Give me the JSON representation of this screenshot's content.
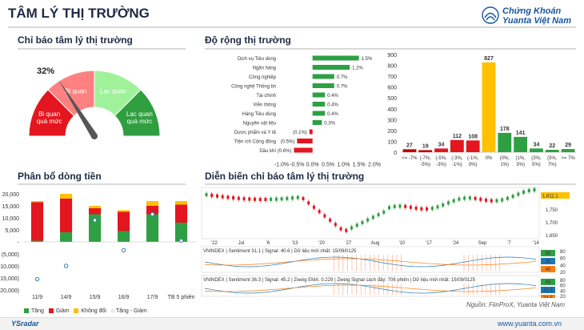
{
  "header": {
    "title": "TÂM LÝ THỊ TRƯỜNG",
    "brand_line1": "Chứng Khoán",
    "brand_line2": "Yuanta Việt Nam"
  },
  "sentiment": {
    "title": "Chỉ báo tâm lý thị trường",
    "value_label": "32%",
    "value": 32,
    "zones": [
      "Bi quan quá mức",
      "Bi quan",
      "Lạc quan",
      "Lạc quan quá mức"
    ],
    "zone_colors": [
      "#e3161f",
      "#ff8080",
      "#9ff29a",
      "#2f9e3f"
    ]
  },
  "breadth_section": {
    "title": "Độ rộng thị trường"
  },
  "sector_chart": {
    "chart_data": {
      "type": "bar",
      "orientation": "horizontal",
      "categories": [
        "Dịch vụ Tiêu dùng",
        "Ngân hàng",
        "Công nghiệp",
        "Công nghệ Thông tin",
        "Tài chính",
        "Viễn thông",
        "Hàng Tiêu dùng",
        "Nguyên vật liệu",
        "Dược phẩm và Y tế",
        "Tiện ích Cộng đồng",
        "Dầu khí"
      ],
      "values": [
        1.5,
        1.2,
        0.7,
        0.7,
        0.4,
        0.4,
        0.4,
        0.3,
        -0.1,
        -0.5,
        -0.6
      ],
      "value_labels": [
        "1.5%",
        "1.2%",
        "0.7%",
        "0.7%",
        "0.4%",
        "0.4%",
        "0.4%",
        "0.3%",
        "(0.1%)",
        "(0.5%)",
        "(0.6%)"
      ],
      "x_ticks": [
        "-1.0%",
        "-0.5%",
        "0.0%",
        "0.5%",
        "1.0%",
        "1.5%",
        "2.0%"
      ],
      "xlim": [
        -1.0,
        2.0
      ],
      "positive_color": "#2ea043",
      "negative_color": "#e3161f"
    }
  },
  "distribution_chart": {
    "chart_data": {
      "type": "bar",
      "categories": [
        "<= -7%",
        "(-7%, -5%)",
        "(-5%, -3%)",
        "(-3%, -1%)",
        "(-1%, 0%)",
        "0%",
        "(0%, 1%)",
        "(1%, 3%)",
        "(3%, 5%)",
        "(5%, 7%)",
        ">= 7%"
      ],
      "category_lines": [
        [
          "<= -7%"
        ],
        [
          "(-7%,",
          "-5%)"
        ],
        [
          "(-5%,",
          "-3%)"
        ],
        [
          "(-3%,",
          "-1%)"
        ],
        [
          "(-1%,",
          "0%)"
        ],
        [
          "0%"
        ],
        [
          "(0%,",
          "1%)"
        ],
        [
          "(1%,",
          "3%)"
        ],
        [
          "(3%,",
          "5%)"
        ],
        [
          "(5%,",
          "7%)"
        ],
        [
          ">= 7%"
        ]
      ],
      "values": [
        27,
        19,
        34,
        112,
        108,
        827,
        178,
        141,
        34,
        22,
        29
      ],
      "colors": [
        "#c00000",
        "#c00000",
        "#e3161f",
        "#e3161f",
        "#e3161f",
        "#ffc000",
        "#2ea043",
        "#2ea043",
        "#2ea043",
        "#2ea043",
        "#2ea043"
      ],
      "value_colors": [
        "#c00000",
        "#c00000",
        "#e3161f",
        "#e3161f",
        "#e3161f",
        "#ffc000",
        "#2ea043",
        "#2ea043",
        "#2ea043",
        "#2ea043",
        "#2ea043"
      ],
      "y_ticks": [
        0,
        100,
        200,
        300,
        400,
        500,
        600,
        700,
        800,
        900
      ],
      "ylim": [
        0,
        900
      ]
    }
  },
  "flow_chart": {
    "title": "Phân bổ dòng tiền",
    "chart_data": {
      "type": "bar",
      "stacked": true,
      "categories": [
        "11/9",
        "14/9",
        "15/9",
        "16/9",
        "17/9",
        "TB 5 phiên"
      ],
      "series": [
        {
          "name": "Tăng",
          "color": "#2ea043",
          "values": [
            500,
            4000,
            11500,
            4500,
            11500,
            8000
          ]
        },
        {
          "name": "Giảm",
          "color": "#e3161f",
          "values": [
            16000,
            14000,
            2500,
            8000,
            3500,
            7500
          ]
        },
        {
          "name": "Không đổi",
          "color": "#ffc000",
          "values": [
            500,
            2000,
            1000,
            700,
            2000,
            1500
          ]
        }
      ],
      "line_series": {
        "name": "Tăng - Giảm",
        "color": "#2e75b6",
        "values": [
          -15500,
          -10000,
          9000,
          -3500,
          11500,
          500
        ]
      },
      "y_ticks": [
        "20,000",
        "15,000",
        "10,000",
        "5,000",
        "-",
        "(5,000)",
        "(10,000)",
        "(15,000)",
        "(20,000)"
      ],
      "ylim": [
        -20000,
        20000
      ]
    }
  },
  "evolution": {
    "title": "Diễn biến chỉ báo tâm lý thị trường",
    "chart_data": {
      "type": "line",
      "x_labels": [
        "'22",
        "Jul",
        "'6",
        "'13",
        "'20",
        "'27",
        "Aug",
        "'10",
        "'17",
        "'24",
        "Sep",
        "'7",
        "'14"
      ],
      "price_ticks": [
        "1,750",
        "1,700",
        "1,650"
      ],
      "price_last": "1,811.1",
      "panel1_text": "VNINDEX | Sentiment 31.1 | Signal: 40.6 | Dữ liệu mới nhất: 15/09/0125",
      "panel1_ticks": [
        "80",
        "60",
        "40",
        "20"
      ],
      "panel1_values": [
        "50",
        "31",
        "40"
      ],
      "panel2_text": "VNINDEX | Sentiment 36.3 | Signal: 45.2 | Zweig EMA: 0.229 | Zweig Signal cách đây: 706 phiên | Dữ liệu mới nhất: 15/09/0125",
      "panel2_ticks": [
        "80",
        "60",
        "40",
        "20"
      ],
      "panel2_values": [
        "45",
        "31.5",
        "24.5"
      ],
      "side_values": [
        "1,811.11",
        "1,794.5"
      ],
      "source": "Nguồn: FiinProX, Yuanta Việt Nam"
    }
  },
  "footer": {
    "left": "YSradar",
    "right": "www.yuanta.com.vn"
  }
}
